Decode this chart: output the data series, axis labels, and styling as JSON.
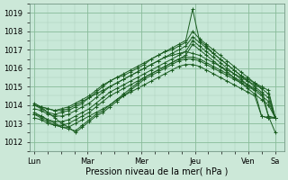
{
  "xlabel": "Pression niveau de la mer( hPa )",
  "bg_color": "#cce8d8",
  "plot_bg_color": "#c8e8d8",
  "grid_major_color": "#88bb99",
  "grid_minor_color": "#aaccbb",
  "line_color": "#1a5c20",
  "ylim": [
    1011.5,
    1019.5
  ],
  "yticks": [
    1012,
    1013,
    1014,
    1015,
    1016,
    1017,
    1018,
    1019
  ],
  "day_labels": [
    "Lun",
    "Mar",
    "Mer",
    "Jeu",
    "Ven",
    "Sa"
  ],
  "day_positions": [
    0,
    24,
    48,
    72,
    96,
    108
  ],
  "xlim": [
    -2,
    112
  ],
  "series": [
    [
      1014.0,
      1013.8,
      1013.6,
      1013.5,
      1013.6,
      1013.7,
      1013.9,
      1014.1,
      1014.4,
      1014.7,
      1015.0,
      1015.3,
      1015.5,
      1015.6,
      1015.8,
      1016.0,
      1016.2,
      1016.5,
      1016.7,
      1016.9,
      1017.1,
      1017.3,
      1017.5,
      1019.2,
      1017.5,
      1017.2,
      1016.8,
      1016.5,
      1016.2,
      1015.9,
      1015.6,
      1015.4,
      1015.2,
      1015.0,
      1014.8,
      1013.3
    ],
    [
      1014.0,
      1013.9,
      1013.8,
      1013.7,
      1013.8,
      1013.9,
      1014.1,
      1014.3,
      1014.5,
      1014.8,
      1015.1,
      1015.3,
      1015.5,
      1015.7,
      1015.9,
      1016.1,
      1016.3,
      1016.5,
      1016.7,
      1016.9,
      1017.0,
      1017.2,
      1017.4,
      1018.0,
      1017.6,
      1017.3,
      1017.0,
      1016.7,
      1016.4,
      1016.1,
      1015.8,
      1015.5,
      1015.2,
      1014.9,
      1014.6,
      1013.3
    ],
    [
      1013.8,
      1013.7,
      1013.5,
      1013.4,
      1013.4,
      1013.5,
      1013.7,
      1013.9,
      1014.1,
      1014.4,
      1014.7,
      1015.0,
      1015.2,
      1015.4,
      1015.6,
      1015.8,
      1016.0,
      1016.2,
      1016.4,
      1016.6,
      1016.8,
      1017.0,
      1017.2,
      1017.7,
      1017.4,
      1017.1,
      1016.8,
      1016.5,
      1016.2,
      1015.9,
      1015.6,
      1015.3,
      1015.0,
      1014.7,
      1014.4,
      1013.3
    ],
    [
      1013.5,
      1013.4,
      1013.2,
      1013.1,
      1013.1,
      1013.2,
      1013.4,
      1013.6,
      1013.8,
      1014.1,
      1014.4,
      1014.7,
      1014.9,
      1015.1,
      1015.3,
      1015.5,
      1015.7,
      1015.9,
      1016.1,
      1016.3,
      1016.5,
      1016.7,
      1016.9,
      1017.5,
      1017.2,
      1016.9,
      1016.6,
      1016.3,
      1016.0,
      1015.7,
      1015.4,
      1015.1,
      1014.8,
      1014.5,
      1014.2,
      1013.3
    ],
    [
      1013.3,
      1013.2,
      1013.0,
      1012.9,
      1012.9,
      1013.0,
      1013.2,
      1013.4,
      1013.6,
      1013.9,
      1014.2,
      1014.5,
      1014.7,
      1014.9,
      1015.1,
      1015.3,
      1015.5,
      1015.7,
      1015.9,
      1016.1,
      1016.3,
      1016.5,
      1016.7,
      1017.3,
      1017.0,
      1016.7,
      1016.4,
      1016.1,
      1015.8,
      1015.5,
      1015.2,
      1014.9,
      1014.6,
      1014.3,
      1014.0,
      1013.3
    ],
    [
      1013.6,
      1013.4,
      1013.2,
      1013.0,
      1012.8,
      1012.7,
      1012.6,
      1012.9,
      1013.2,
      1013.5,
      1013.7,
      1014.0,
      1014.3,
      1014.6,
      1014.9,
      1015.2,
      1015.5,
      1015.7,
      1015.9,
      1016.1,
      1016.3,
      1016.5,
      1016.6,
      1016.6,
      1016.5,
      1016.3,
      1016.1,
      1015.9,
      1015.7,
      1015.5,
      1015.3,
      1015.1,
      1014.9,
      1014.6,
      1013.4,
      1012.5
    ],
    [
      1014.1,
      1013.9,
      1013.6,
      1013.3,
      1013.0,
      1012.8,
      1012.5,
      1012.8,
      1013.1,
      1013.4,
      1013.6,
      1013.9,
      1014.2,
      1014.5,
      1014.8,
      1015.1,
      1015.4,
      1015.6,
      1015.8,
      1016.0,
      1016.2,
      1016.4,
      1016.5,
      1016.5,
      1016.4,
      1016.2,
      1016.0,
      1015.8,
      1015.6,
      1015.4,
      1015.2,
      1015.0,
      1014.8,
      1013.4,
      1013.3,
      1013.3
    ],
    [
      1013.5,
      1013.3,
      1013.1,
      1012.9,
      1012.8,
      1012.8,
      1013.0,
      1013.2,
      1013.4,
      1013.6,
      1013.8,
      1014.0,
      1014.3,
      1014.5,
      1014.7,
      1014.9,
      1015.1,
      1015.3,
      1015.5,
      1015.7,
      1015.9,
      1016.1,
      1016.2,
      1016.2,
      1016.1,
      1015.9,
      1015.7,
      1015.5,
      1015.3,
      1015.1,
      1014.9,
      1014.7,
      1014.5,
      1013.4,
      1013.3,
      1013.3
    ],
    [
      1014.0,
      1013.9,
      1013.8,
      1013.7,
      1013.7,
      1013.8,
      1014.0,
      1014.2,
      1014.4,
      1014.6,
      1014.8,
      1015.0,
      1015.2,
      1015.4,
      1015.6,
      1015.8,
      1016.0,
      1016.2,
      1016.4,
      1016.6,
      1016.7,
      1016.8,
      1016.9,
      1016.8,
      1016.7,
      1016.5,
      1016.3,
      1016.1,
      1015.9,
      1015.7,
      1015.5,
      1015.3,
      1015.1,
      1014.9,
      1013.4,
      1013.3
    ]
  ],
  "n_points": 36
}
